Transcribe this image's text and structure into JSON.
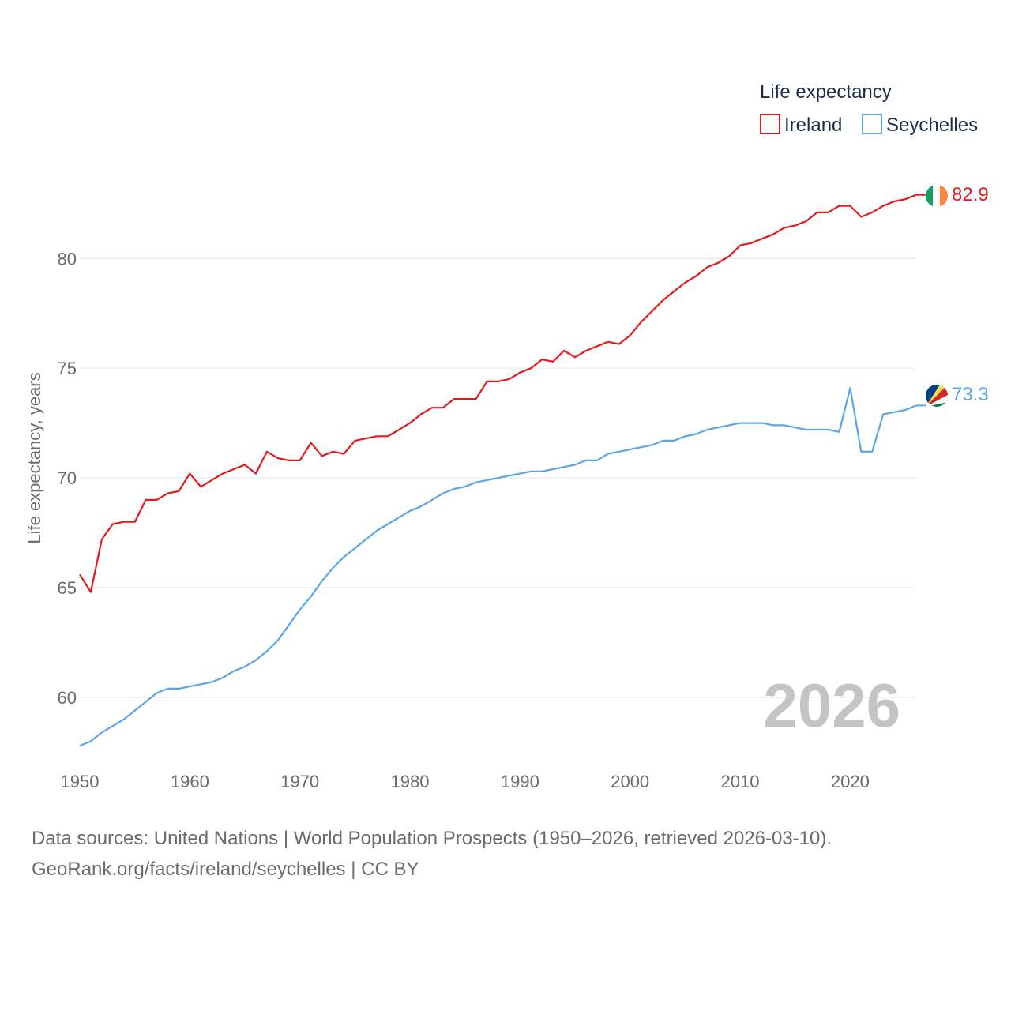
{
  "chart_data": {
    "type": "line",
    "title": "",
    "legend_title": "Life expectancy",
    "legend_position": "top-right",
    "xlabel": "",
    "ylabel": "Life expectancy, years",
    "xlim": [
      1950,
      2026
    ],
    "ylim": [
      57.3,
      83.5
    ],
    "x_ticks": [
      1950,
      1960,
      1970,
      1980,
      1990,
      2000,
      2010,
      2020
    ],
    "x_tick_labels": [
      "1950",
      "1960",
      "1970",
      "1980",
      "1990",
      "2000",
      "2010",
      "2020"
    ],
    "y_ticks": [
      60,
      65,
      70,
      75,
      80
    ],
    "y_tick_labels": [
      "60",
      "65",
      "70",
      "75",
      "80"
    ],
    "grid": true,
    "year_watermark": "2026",
    "x": [
      1950,
      1951,
      1952,
      1953,
      1954,
      1955,
      1956,
      1957,
      1958,
      1959,
      1960,
      1961,
      1962,
      1963,
      1964,
      1965,
      1966,
      1967,
      1968,
      1969,
      1970,
      1971,
      1972,
      1973,
      1974,
      1975,
      1976,
      1977,
      1978,
      1979,
      1980,
      1981,
      1982,
      1983,
      1984,
      1985,
      1986,
      1987,
      1988,
      1989,
      1990,
      1991,
      1992,
      1993,
      1994,
      1995,
      1996,
      1997,
      1998,
      1999,
      2000,
      2001,
      2002,
      2003,
      2004,
      2005,
      2006,
      2007,
      2008,
      2009,
      2010,
      2011,
      2012,
      2013,
      2014,
      2015,
      2016,
      2017,
      2018,
      2019,
      2020,
      2021,
      2022,
      2023,
      2024,
      2025,
      2026
    ],
    "series": [
      {
        "name": "Ireland",
        "color": "#e31a1c",
        "end_label": "82.9",
        "flag": "ireland-flag",
        "values": [
          65.6,
          64.8,
          67.2,
          67.9,
          68.0,
          68.0,
          69.0,
          69.0,
          69.3,
          69.4,
          70.2,
          69.6,
          69.9,
          70.2,
          70.4,
          70.6,
          70.2,
          71.2,
          70.9,
          70.8,
          70.8,
          71.6,
          71.0,
          71.2,
          71.1,
          71.7,
          71.8,
          71.9,
          71.9,
          72.2,
          72.5,
          72.9,
          73.2,
          73.2,
          73.6,
          73.6,
          73.6,
          74.4,
          74.4,
          74.5,
          74.8,
          75.0,
          75.4,
          75.3,
          75.8,
          75.5,
          75.8,
          76.0,
          76.2,
          76.1,
          76.5,
          77.1,
          77.6,
          78.1,
          78.5,
          78.9,
          79.2,
          79.6,
          79.8,
          80.1,
          80.6,
          80.7,
          80.9,
          81.1,
          81.4,
          81.5,
          81.7,
          82.1,
          82.1,
          82.4,
          82.4,
          81.9,
          82.1,
          82.4,
          82.6,
          82.7,
          82.9
        ]
      },
      {
        "name": "Seychelles",
        "color": "#5da5e6",
        "end_label": "73.3",
        "flag": "seychelles-flag",
        "values": [
          57.8,
          58.0,
          58.4,
          58.7,
          59.0,
          59.4,
          59.8,
          60.2,
          60.4,
          60.4,
          60.5,
          60.6,
          60.7,
          60.9,
          61.2,
          61.4,
          61.7,
          62.1,
          62.6,
          63.3,
          64.0,
          64.6,
          65.3,
          65.9,
          66.4,
          66.8,
          67.2,
          67.6,
          67.9,
          68.2,
          68.5,
          68.7,
          69.0,
          69.3,
          69.5,
          69.6,
          69.8,
          69.9,
          70.0,
          70.1,
          70.2,
          70.3,
          70.3,
          70.4,
          70.5,
          70.6,
          70.8,
          70.8,
          71.1,
          71.2,
          71.3,
          71.4,
          71.5,
          71.7,
          71.7,
          71.9,
          72.0,
          72.2,
          72.3,
          72.4,
          72.5,
          72.5,
          72.5,
          72.4,
          72.4,
          72.3,
          72.2,
          72.2,
          72.2,
          72.1,
          74.1,
          71.2,
          71.2,
          72.9,
          73.0,
          73.1,
          73.3
        ]
      }
    ]
  },
  "footer": {
    "line1": "Data sources: United Nations | World Population Prospects (1950–2026, retrieved 2026-03-10).",
    "line2": "GeoRank.org/facts/ireland/seychelles | CC BY"
  }
}
